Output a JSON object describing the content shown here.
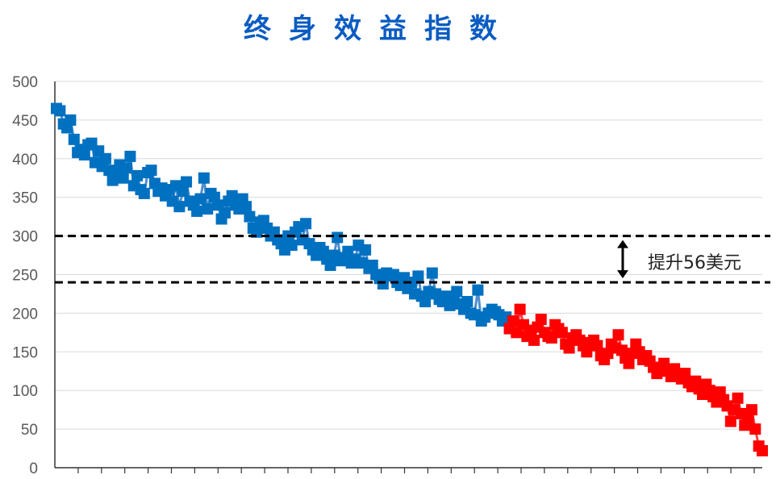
{
  "chart_data": {
    "type": "scatter",
    "title": "终身效益指数",
    "xlabel": "",
    "ylabel": "",
    "ylim": [
      0,
      500
    ],
    "yticks": [
      "0",
      "50",
      "100",
      "150",
      "200",
      "250",
      "300",
      "350",
      "400",
      "450",
      "500"
    ],
    "grid": true,
    "marker": "square",
    "series": [
      {
        "color": "#0070C0",
        "values": [
          465,
          462,
          445,
          440,
          450,
          425,
          408,
          412,
          405,
          418,
          420,
          395,
          410,
          390,
          400,
          385,
          372,
          380,
          392,
          375,
          388,
          403,
          365,
          378,
          360,
          355,
          382,
          385,
          368,
          358,
          362,
          352,
          360,
          345,
          365,
          338,
          358,
          370,
          345,
          340,
          332,
          348,
          375,
          335,
          355,
          350,
          340,
          322,
          330,
          345,
          352,
          340,
          335,
          348,
          338,
          325,
          310,
          305,
          318,
          320,
          310,
          300,
          305,
          295,
          290,
          282,
          300,
          288,
          305,
          312,
          295,
          316,
          290,
          282,
          275,
          285,
          280,
          270,
          262,
          275,
          298,
          268,
          272,
          280,
          265,
          270,
          288,
          265,
          282,
          258,
          262,
          250,
          245,
          238,
          252,
          248,
          250,
          240,
          236,
          246,
          232,
          240,
          225,
          248,
          222,
          215,
          228,
          252,
          225,
          218,
          215,
          222,
          210,
          220,
          228,
          212,
          205,
          215,
          200,
          198,
          230,
          190,
          195,
          200,
          205,
          202,
          198,
          190,
          195
        ]
      },
      {
        "color": "#FF0000",
        "values": [
          180,
          190,
          175,
          205,
          185,
          170,
          178,
          165,
          182,
          192,
          175,
          170,
          168,
          185,
          180,
          175,
          160,
          155,
          168,
          172,
          165,
          158,
          150,
          162,
          165,
          158,
          145,
          140,
          148,
          160,
          155,
          172,
          152,
          142,
          135,
          148,
          160,
          150,
          140,
          145,
          138,
          130,
          122,
          128,
          135,
          125,
          118,
          128,
          120,
          115,
          122,
          110,
          105,
          112,
          102,
          95,
          108,
          100,
          92,
          85,
          98,
          88,
          80,
          60,
          75,
          90,
          70,
          55,
          62,
          75,
          50,
          28,
          22
        ]
      }
    ],
    "reference_lines": [
      300,
      240
    ],
    "annotation": "提升56美元"
  }
}
